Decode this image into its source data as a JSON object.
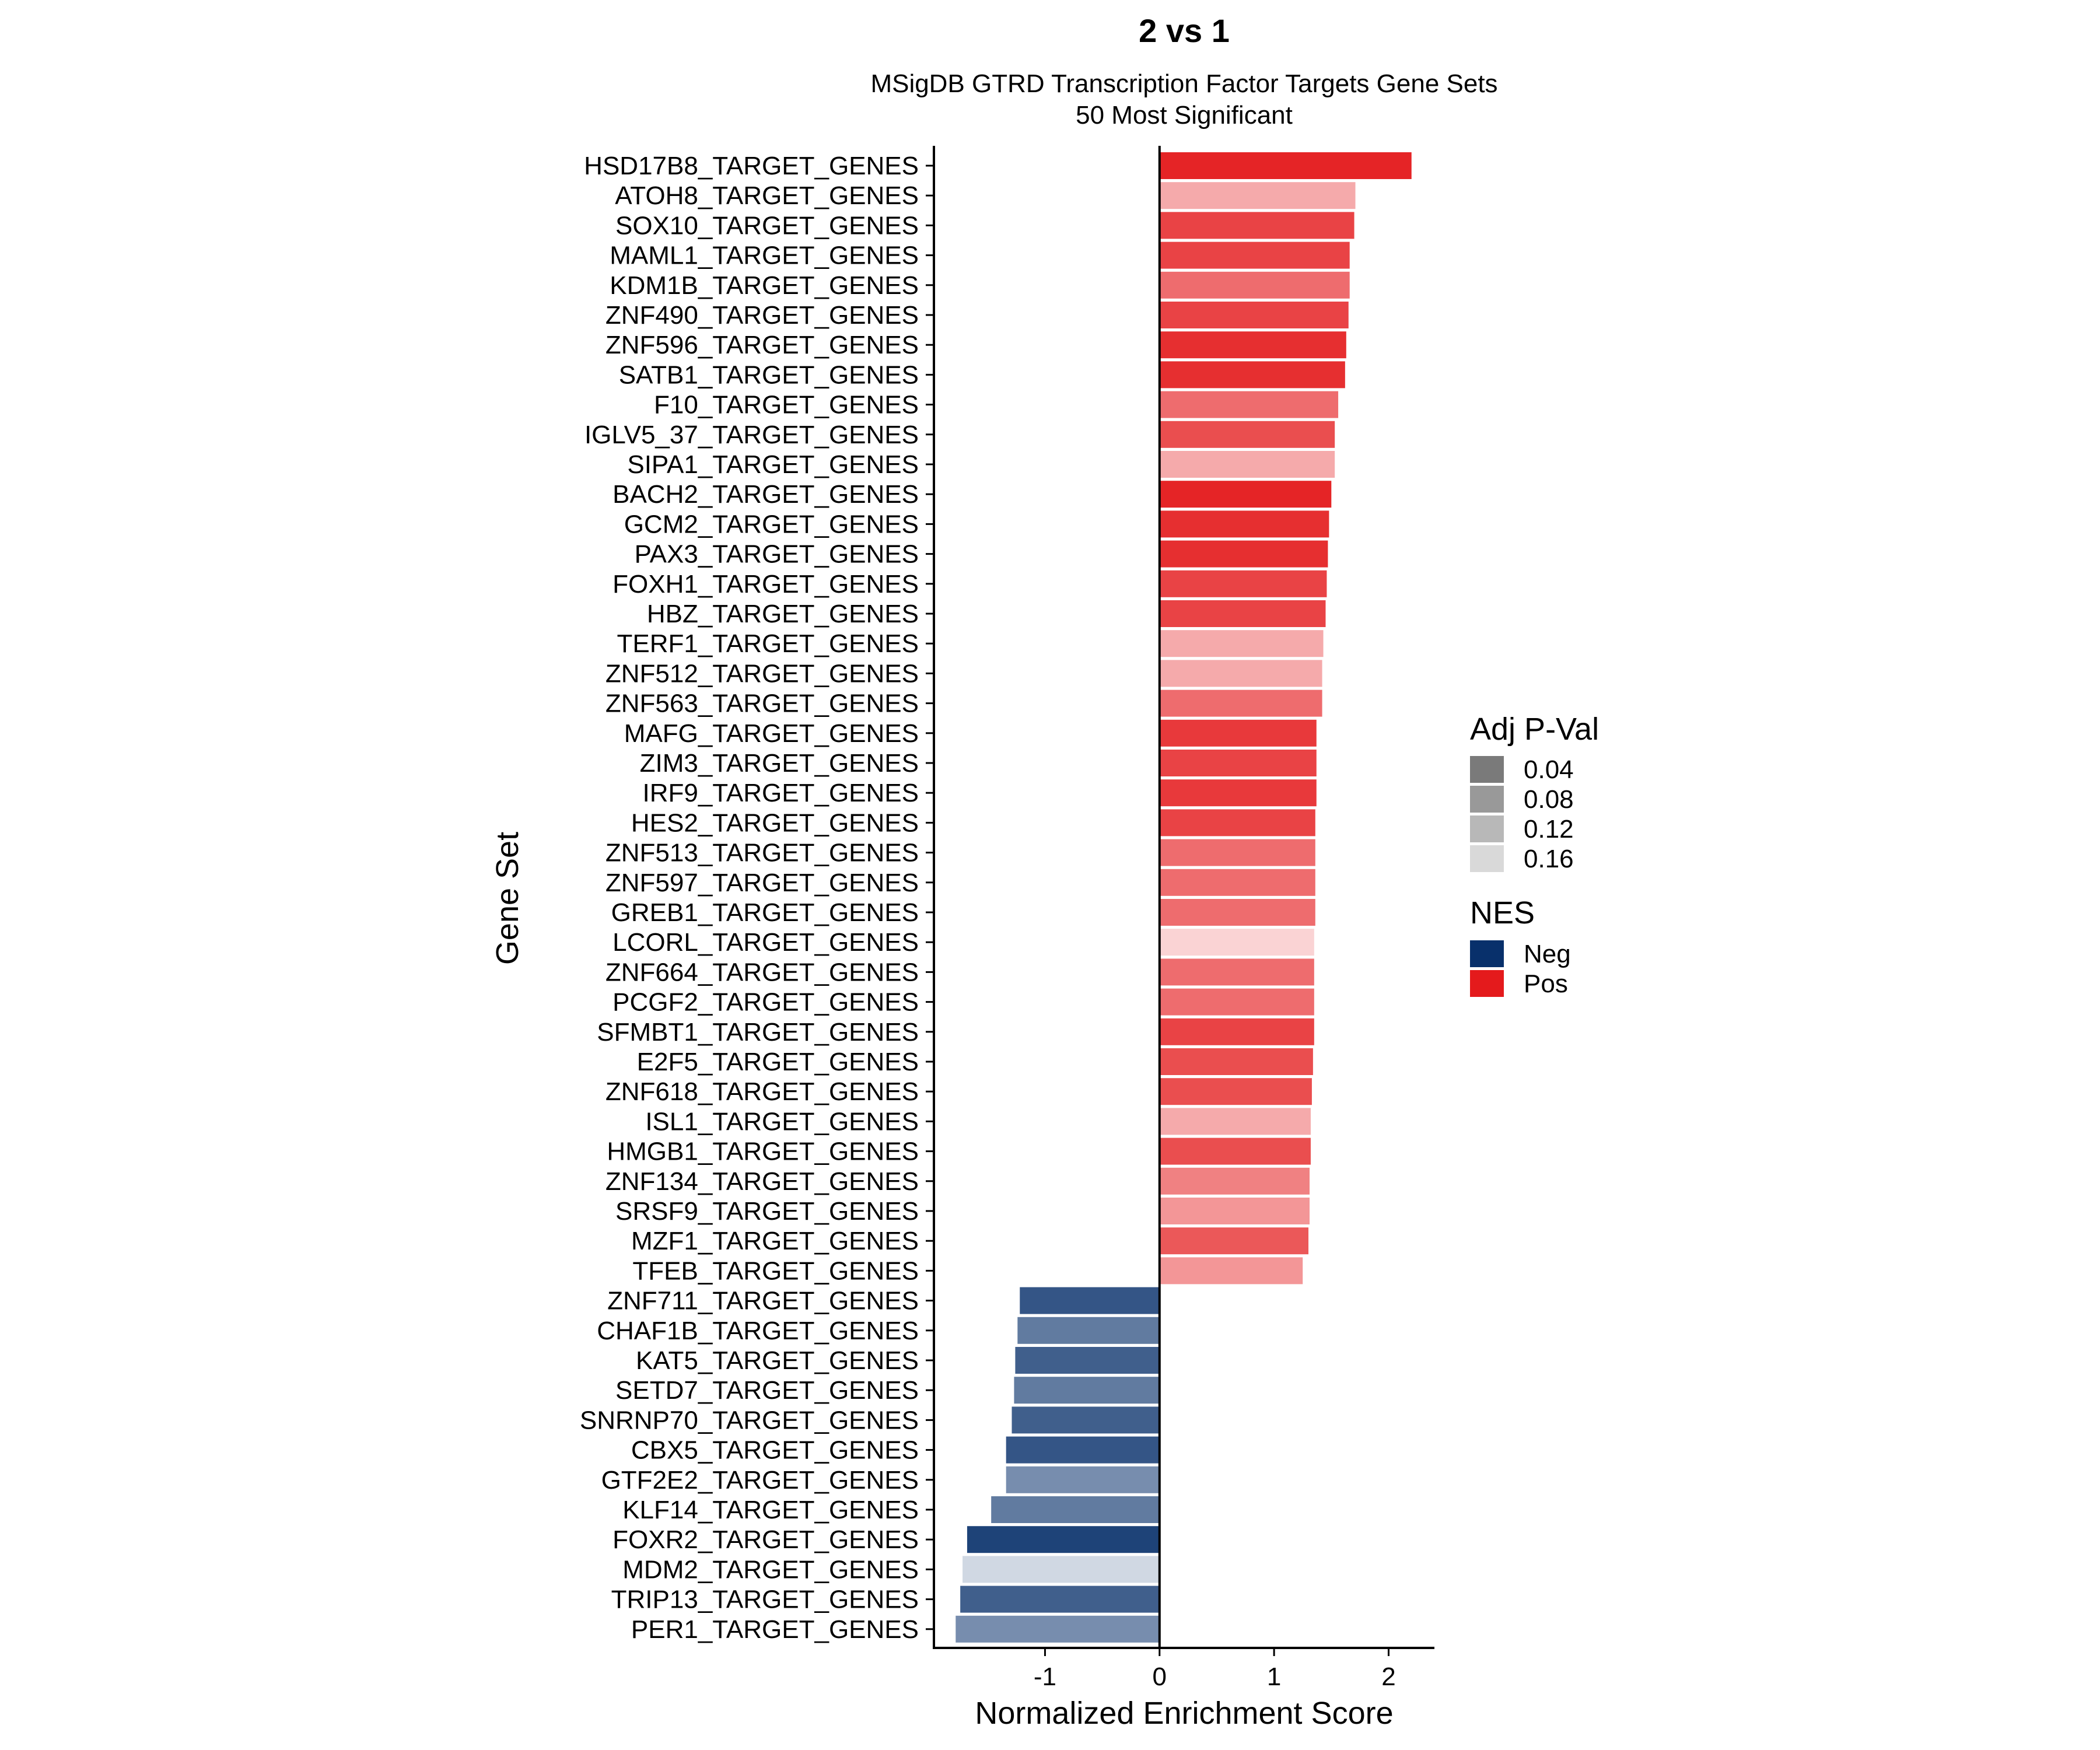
{
  "chart_data": {
    "type": "bar",
    "orientation": "horizontal",
    "title": "2 vs 1",
    "subtitle": [
      "MSigDB GTRD Transcription Factor Targets Gene Sets",
      "50 Most Significant"
    ],
    "xlabel": "Normalized Enrichment Score",
    "ylabel": "Gene Set",
    "xlim": [
      -1.97,
      2.4
    ],
    "xticks": [
      -1,
      0,
      1,
      2
    ],
    "xtick_labels": [
      "-1",
      "0",
      "1",
      "2"
    ],
    "grid": false,
    "colors": {
      "Pos": "#E41A1C",
      "Neg": "#08306B"
    },
    "legend": {
      "position": "right",
      "pval": {
        "title": "Adj P-Val",
        "levels": [
          0.04,
          0.08,
          0.12,
          0.16
        ],
        "labels": [
          "0.04",
          "0.08",
          "0.12",
          "0.16"
        ],
        "swatch_colors": [
          "#7A7A7A",
          "#999999",
          "#B8B8B8",
          "#D9D9D9"
        ]
      },
      "nes": {
        "title": "NES",
        "labels": [
          "Neg",
          "Pos"
        ],
        "keys": [
          "Neg",
          "Pos"
        ]
      }
    },
    "categories": [
      "HSD17B8_TARGET_GENES",
      "ATOH8_TARGET_GENES",
      "SOX10_TARGET_GENES",
      "MAML1_TARGET_GENES",
      "KDM1B_TARGET_GENES",
      "ZNF490_TARGET_GENES",
      "ZNF596_TARGET_GENES",
      "SATB1_TARGET_GENES",
      "F10_TARGET_GENES",
      "IGLV5_37_TARGET_GENES",
      "SIPA1_TARGET_GENES",
      "BACH2_TARGET_GENES",
      "GCM2_TARGET_GENES",
      "PAX3_TARGET_GENES",
      "FOXH1_TARGET_GENES",
      "HBZ_TARGET_GENES",
      "TERF1_TARGET_GENES",
      "ZNF512_TARGET_GENES",
      "ZNF563_TARGET_GENES",
      "MAFG_TARGET_GENES",
      "ZIM3_TARGET_GENES",
      "IRF9_TARGET_GENES",
      "HES2_TARGET_GENES",
      "ZNF513_TARGET_GENES",
      "ZNF597_TARGET_GENES",
      "GREB1_TARGET_GENES",
      "LCORL_TARGET_GENES",
      "ZNF664_TARGET_GENES",
      "PCGF2_TARGET_GENES",
      "SFMBT1_TARGET_GENES",
      "E2F5_TARGET_GENES",
      "ZNF618_TARGET_GENES",
      "ISL1_TARGET_GENES",
      "HMGB1_TARGET_GENES",
      "ZNF134_TARGET_GENES",
      "SRSF9_TARGET_GENES",
      "MZF1_TARGET_GENES",
      "TFEB_TARGET_GENES",
      "ZNF711_TARGET_GENES",
      "CHAF1B_TARGET_GENES",
      "KAT5_TARGET_GENES",
      "SETD7_TARGET_GENES",
      "SNRNP70_TARGET_GENES",
      "CBX5_TARGET_GENES",
      "GTF2E2_TARGET_GENES",
      "KLF14_TARGET_GENES",
      "FOXR2_TARGET_GENES",
      "MDM2_TARGET_GENES",
      "TRIP13_TARGET_GENES",
      "PER1_TARGET_GENES"
    ],
    "values": [
      2.2,
      1.71,
      1.7,
      1.66,
      1.66,
      1.65,
      1.63,
      1.62,
      1.56,
      1.53,
      1.53,
      1.5,
      1.48,
      1.47,
      1.46,
      1.45,
      1.43,
      1.42,
      1.42,
      1.37,
      1.37,
      1.37,
      1.36,
      1.36,
      1.36,
      1.36,
      1.35,
      1.35,
      1.35,
      1.35,
      1.34,
      1.33,
      1.32,
      1.32,
      1.31,
      1.31,
      1.3,
      1.25,
      -1.22,
      -1.24,
      -1.26,
      -1.27,
      -1.29,
      -1.34,
      -1.34,
      -1.47,
      -1.68,
      -1.72,
      -1.74,
      -1.78
    ],
    "adj_pval": [
      0.01,
      0.14,
      0.04,
      0.04,
      0.08,
      0.04,
      0.02,
      0.02,
      0.08,
      0.05,
      0.14,
      0.01,
      0.02,
      0.02,
      0.04,
      0.04,
      0.14,
      0.14,
      0.08,
      0.03,
      0.04,
      0.03,
      0.04,
      0.08,
      0.08,
      0.08,
      0.18,
      0.08,
      0.08,
      0.04,
      0.05,
      0.05,
      0.14,
      0.05,
      0.1,
      0.12,
      0.06,
      0.12,
      0.04,
      0.08,
      0.05,
      0.08,
      0.05,
      0.04,
      0.1,
      0.08,
      0.02,
      0.18,
      0.05,
      0.1
    ],
    "direction": [
      "Pos",
      "Pos",
      "Pos",
      "Pos",
      "Pos",
      "Pos",
      "Pos",
      "Pos",
      "Pos",
      "Pos",
      "Pos",
      "Pos",
      "Pos",
      "Pos",
      "Pos",
      "Pos",
      "Pos",
      "Pos",
      "Pos",
      "Pos",
      "Pos",
      "Pos",
      "Pos",
      "Pos",
      "Pos",
      "Pos",
      "Pos",
      "Pos",
      "Pos",
      "Pos",
      "Pos",
      "Pos",
      "Pos",
      "Pos",
      "Pos",
      "Pos",
      "Pos",
      "Pos",
      "Neg",
      "Neg",
      "Neg",
      "Neg",
      "Neg",
      "Neg",
      "Neg",
      "Neg",
      "Neg",
      "Neg",
      "Neg",
      "Neg"
    ]
  }
}
